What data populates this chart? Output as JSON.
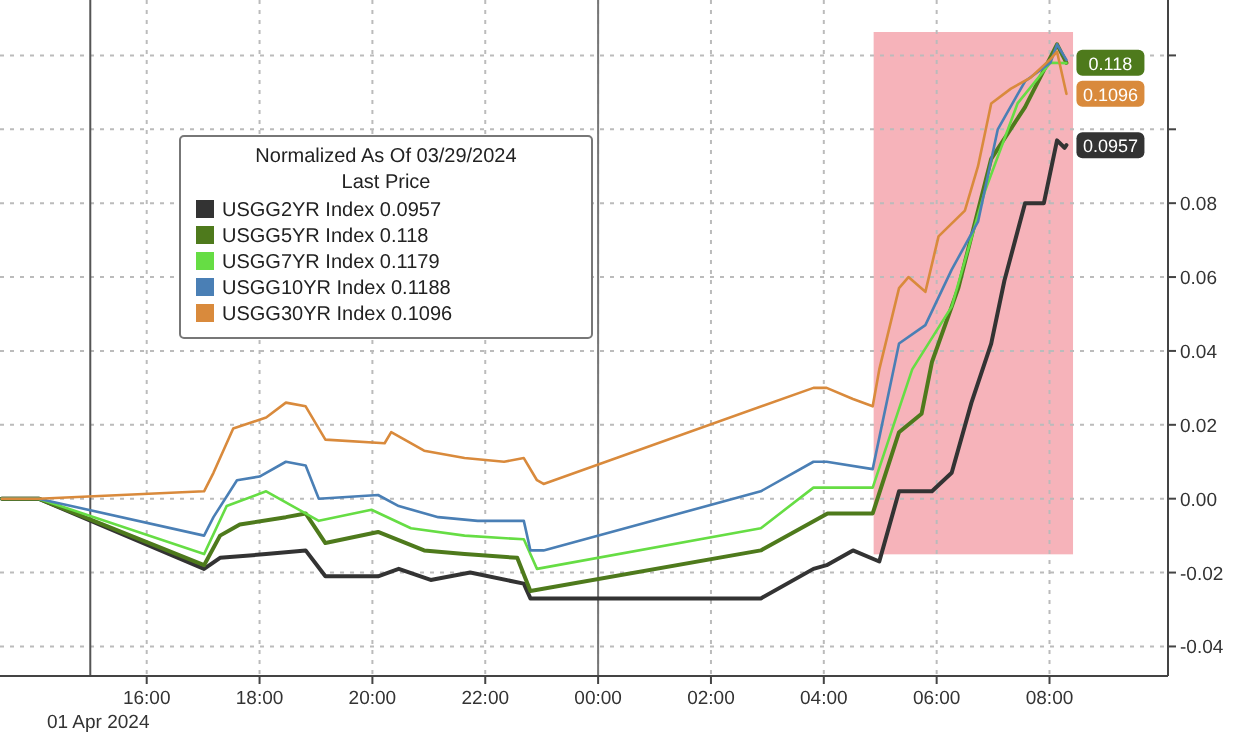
{
  "chart_data": {
    "type": "line",
    "legend_title": "Normalized As Of 03/29/2024\nLast Price",
    "annotations": [
      "01 Apr 2024"
    ],
    "xlim": [
      "2024-03-31T13:24",
      "2024-04-01T10:06"
    ],
    "ylim": [
      -0.048,
      0.135
    ],
    "xticks": [
      {
        "value": "2024-03-31T16:00",
        "label": "16:00"
      },
      {
        "value": "2024-03-31T18:00",
        "label": "18:00"
      },
      {
        "value": "2024-03-31T20:00",
        "label": "20:00"
      },
      {
        "value": "2024-03-31T22:00",
        "label": "22:00"
      },
      {
        "value": "2024-04-01T00:00",
        "label": "00:00"
      },
      {
        "value": "2024-04-01T02:00",
        "label": "02:00"
      },
      {
        "value": "2024-04-01T04:00",
        "label": "04:00"
      },
      {
        "value": "2024-04-01T06:00",
        "label": "06:00"
      },
      {
        "value": "2024-04-01T08:00",
        "label": "08:00"
      }
    ],
    "yticks": [
      {
        "value": -0.04,
        "label": "-0.04"
      },
      {
        "value": -0.02,
        "label": "-0.02"
      },
      {
        "value": 0,
        "label": "0.00"
      },
      {
        "value": 0.02,
        "label": "0.02"
      },
      {
        "value": 0.04,
        "label": "0.04"
      },
      {
        "value": 0.06,
        "label": "0.06"
      },
      {
        "value": 0.08,
        "label": "0.08"
      },
      {
        "value": 0.1,
        "label": null
      },
      {
        "value": 0.12,
        "label": null
      }
    ],
    "grid": true,
    "legend": "top left",
    "line_style": "solid",
    "marker": "none",
    "ref_lines": [
      {
        "axis": "x",
        "value": "2024-03-31T15:00",
        "color": "#555555"
      },
      {
        "axis": "x",
        "value": "2024-04-01T00:00",
        "color": "#777777"
      }
    ],
    "bands": [
      {
        "axis": "x",
        "from": "2024-04-01T04:53",
        "to": "2024-04-01T08:25",
        "color": "#f4a6ae"
      }
    ],
    "series": [
      {
        "name": "USGG2YR Index 0.0957",
        "color": "#333333",
        "x": [
          "2024-03-31T13:26",
          "2024-03-31T14:05",
          "2024-03-31T17:01",
          "2024-03-31T17:18",
          "2024-03-31T18:07",
          "2024-03-31T18:49",
          "2024-03-31T19:10",
          "2024-03-31T20:06",
          "2024-03-31T20:28",
          "2024-03-31T21:02",
          "2024-03-31T21:44",
          "2024-03-31T22:41",
          "2024-03-31T22:48",
          "2024-04-01T02:53",
          "2024-04-01T03:49",
          "2024-04-01T04:03",
          "2024-04-01T04:31",
          "2024-04-01T04:59",
          "2024-04-01T05:20",
          "2024-04-01T05:55",
          "2024-04-01T06:16",
          "2024-04-01T06:37",
          "2024-04-01T06:58",
          "2024-04-01T07:12",
          "2024-04-01T07:34",
          "2024-04-01T07:54",
          "2024-04-01T08:08",
          "2024-04-01T08:16",
          "2024-04-01T08:18"
        ],
        "values": [
          0,
          0,
          -0.019,
          -0.016,
          -0.015,
          -0.014,
          -0.021,
          -0.021,
          -0.019,
          -0.022,
          -0.02,
          -0.023,
          -0.027,
          -0.027,
          -0.019,
          -0.018,
          -0.014,
          -0.017,
          0.002,
          0.002,
          0.007,
          0.026,
          0.042,
          0.059,
          0.08,
          0.08,
          0.097,
          0.095,
          0.0957
        ],
        "value_labels": [
          null,
          null,
          null,
          null,
          null,
          null,
          null,
          null,
          null,
          null,
          null,
          null,
          null,
          null,
          null,
          null,
          null,
          null,
          null,
          null,
          null,
          null,
          null,
          null,
          null,
          null,
          null,
          null,
          "0.0957"
        ]
      },
      {
        "name": "USGG5YR Index 0.118",
        "color": "#4e7a1c",
        "x": [
          "2024-03-31T13:26",
          "2024-03-31T14:05",
          "2024-03-31T17:01",
          "2024-03-31T17:18",
          "2024-03-31T17:39",
          "2024-03-31T18:28",
          "2024-03-31T18:49",
          "2024-03-31T19:10",
          "2024-03-31T20:06",
          "2024-03-31T20:55",
          "2024-03-31T21:38",
          "2024-03-31T22:34",
          "2024-03-31T22:48",
          "2024-04-01T02:53",
          "2024-04-01T04:04",
          "2024-04-01T04:52",
          "2024-04-01T05:20",
          "2024-04-01T05:44",
          "2024-04-01T05:55",
          "2024-04-01T06:23",
          "2024-04-01T06:58",
          "2024-04-01T07:34",
          "2024-04-01T08:08",
          "2024-04-01T08:18"
        ],
        "values": [
          0,
          0,
          -0.018,
          -0.01,
          -0.007,
          -0.005,
          -0.004,
          -0.012,
          -0.009,
          -0.014,
          -0.015,
          -0.016,
          -0.025,
          -0.014,
          -0.004,
          -0.004,
          0.018,
          0.023,
          0.037,
          0.057,
          0.092,
          0.106,
          0.123,
          0.118
        ],
        "value_labels": [
          null,
          null,
          null,
          null,
          null,
          null,
          null,
          null,
          null,
          null,
          null,
          null,
          null,
          null,
          null,
          null,
          null,
          null,
          null,
          null,
          null,
          null,
          null,
          "0.118"
        ]
      },
      {
        "name": "USGG7YR Index 0.1179",
        "color": "#66dd44",
        "x": [
          "2024-03-31T13:26",
          "2024-03-31T14:05",
          "2024-03-31T17:01",
          "2024-03-31T17:25",
          "2024-03-31T18:07",
          "2024-03-31T19:03",
          "2024-03-31T19:59",
          "2024-03-31T20:41",
          "2024-03-31T21:38",
          "2024-03-31T22:41",
          "2024-03-31T22:55",
          "2024-04-01T02:53",
          "2024-04-01T03:49",
          "2024-04-01T04:03",
          "2024-04-01T04:52",
          "2024-04-01T05:34",
          "2024-04-01T06:16",
          "2024-04-01T06:51",
          "2024-04-01T07:26",
          "2024-04-01T08:01",
          "2024-04-01T08:18"
        ],
        "values": [
          0,
          0,
          -0.015,
          -0.002,
          0.002,
          -0.006,
          -0.003,
          -0.008,
          -0.01,
          -0.011,
          -0.019,
          -0.008,
          0.003,
          0.003,
          0.003,
          0.035,
          0.052,
          0.083,
          0.107,
          0.118,
          0.1179
        ]
      },
      {
        "name": "USGG10YR Index 0.1188",
        "color": "#4a7fb5",
        "x": [
          "2024-03-31T13:26",
          "2024-03-31T14:05",
          "2024-03-31T17:01",
          "2024-03-31T17:11",
          "2024-03-31T17:36",
          "2024-03-31T18:00",
          "2024-03-31T18:28",
          "2024-03-31T18:49",
          "2024-03-31T19:03",
          "2024-03-31T20:06",
          "2024-03-31T20:28",
          "2024-03-31T21:10",
          "2024-03-31T21:52",
          "2024-03-31T22:41",
          "2024-03-31T22:48",
          "2024-03-31T23:02",
          "2024-04-01T02:53",
          "2024-04-01T03:49",
          "2024-04-01T04:03",
          "2024-04-01T04:52",
          "2024-04-01T05:20",
          "2024-04-01T05:48",
          "2024-04-01T06:16",
          "2024-04-01T06:44",
          "2024-04-01T07:05",
          "2024-04-01T07:34",
          "2024-04-01T08:01",
          "2024-04-01T08:08",
          "2024-04-01T08:18"
        ],
        "values": [
          0,
          0,
          -0.01,
          -0.005,
          0.005,
          0.006,
          0.01,
          0.009,
          0,
          0.001,
          -0.002,
          -0.005,
          -0.006,
          -0.006,
          -0.014,
          -0.014,
          0.002,
          0.01,
          0.01,
          0.008,
          0.042,
          0.047,
          0.062,
          0.075,
          0.1,
          0.113,
          0.118,
          0.123,
          0.1188
        ]
      },
      {
        "name": "USGG30YR Index 0.1096",
        "color": "#d98a3c",
        "x": [
          "2024-03-31T13:26",
          "2024-03-31T14:05",
          "2024-03-31T17:01",
          "2024-03-31T17:11",
          "2024-03-31T17:32",
          "2024-03-31T18:07",
          "2024-03-31T18:28",
          "2024-03-31T18:49",
          "2024-03-31T19:10",
          "2024-03-31T20:13",
          "2024-03-31T20:20",
          "2024-03-31T20:55",
          "2024-03-31T21:38",
          "2024-03-31T22:20",
          "2024-03-31T22:41",
          "2024-03-31T22:55",
          "2024-03-31T23:02",
          "2024-04-01T03:49",
          "2024-04-01T04:03",
          "2024-04-01T04:31",
          "2024-04-01T04:52",
          "2024-04-01T04:59",
          "2024-04-01T05:20",
          "2024-04-01T05:30",
          "2024-04-01T05:48",
          "2024-04-01T06:02",
          "2024-04-01T06:30",
          "2024-04-01T06:44",
          "2024-04-01T06:58",
          "2024-04-01T07:19",
          "2024-04-01T07:40",
          "2024-04-01T08:01",
          "2024-04-01T08:08",
          "2024-04-01T08:18"
        ],
        "values": [
          0,
          0,
          0.002,
          0.007,
          0.019,
          0.022,
          0.026,
          0.025,
          0.016,
          0.015,
          0.018,
          0.013,
          0.011,
          0.01,
          0.011,
          0.005,
          0.004,
          0.03,
          0.03,
          0.027,
          0.025,
          0.035,
          0.057,
          0.06,
          0.056,
          0.071,
          0.078,
          0.09,
          0.107,
          0.111,
          0.114,
          0.119,
          0.121,
          0.1096
        ],
        "value_labels": [
          null,
          null,
          null,
          null,
          null,
          null,
          null,
          null,
          null,
          null,
          null,
          null,
          null,
          null,
          null,
          null,
          null,
          null,
          null,
          null,
          null,
          null,
          null,
          null,
          null,
          null,
          null,
          null,
          null,
          null,
          null,
          null,
          null,
          "0.1096"
        ]
      }
    ]
  }
}
